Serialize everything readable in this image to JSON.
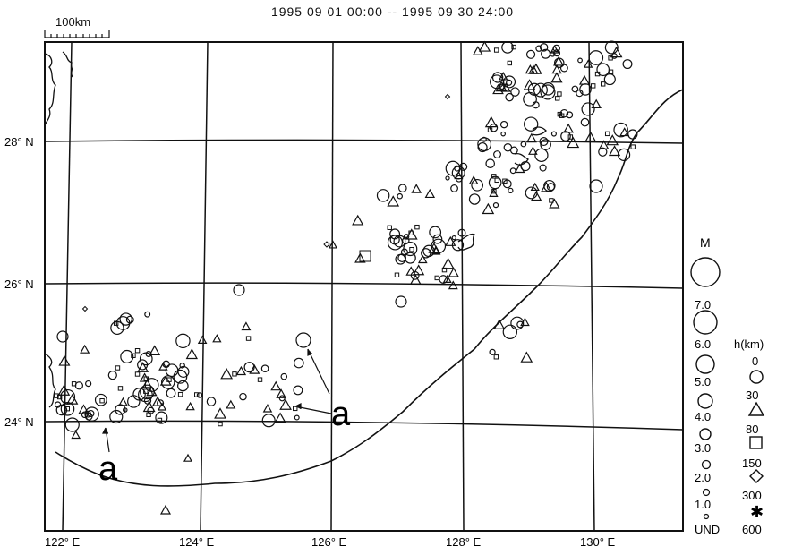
{
  "title": "1995 09 01 00:00 -- 1995 09 30 24:00",
  "scale_bar": {
    "label": "100km"
  },
  "map": {
    "lat_labels": [
      {
        "text": "28° N"
      },
      {
        "text": "26° N"
      },
      {
        "text": "24° N"
      }
    ],
    "lon_labels": [
      {
        "text": "122° E"
      },
      {
        "text": "124° E"
      },
      {
        "text": "126° E"
      },
      {
        "text": "128° E"
      },
      {
        "text": "130° E"
      }
    ],
    "annotations": [
      {
        "text": "a"
      },
      {
        "text": "a"
      }
    ]
  },
  "legend": {
    "magnitude_title": "M",
    "magnitudes": [
      "7.0",
      "6.0",
      "5.0",
      "4.0",
      "3.0",
      "2.0",
      "1.0",
      "UND"
    ],
    "depth_title": "h(km)",
    "depths": [
      "0",
      "30",
      "80",
      "150",
      "300",
      "600"
    ]
  },
  "colors": {
    "ink": "#111111",
    "paper": "#ffffff"
  }
}
